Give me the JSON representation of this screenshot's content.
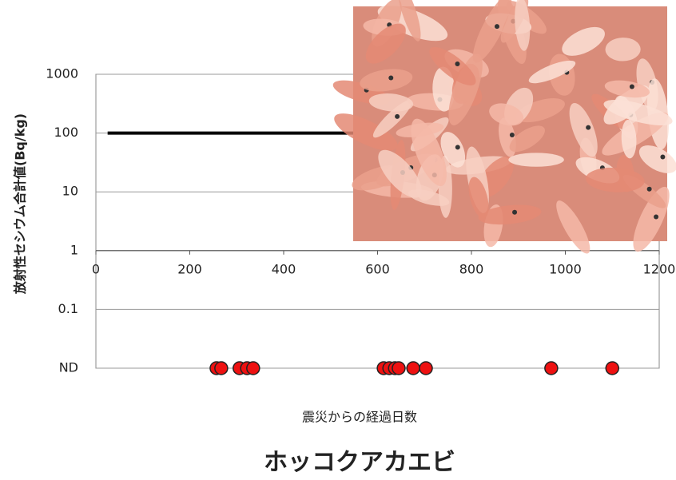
{
  "chart_data": {
    "type": "scatter",
    "title": "ホッコクアカエビ",
    "x_label": "震災からの経過日数",
    "y_label": "放射性セシウム合計値(Bq/kg)",
    "log_scale_y": true,
    "grid": true,
    "xaxis_at": 1,
    "xlim": [
      0,
      1200
    ],
    "xticks": [
      0,
      200,
      400,
      600,
      800,
      1000,
      1200
    ],
    "ylim": [
      0.01,
      1000
    ],
    "yticks": [
      {
        "value": 0.01,
        "label": "ND"
      },
      0.1,
      1,
      10,
      100,
      1000
    ],
    "reference_line": {
      "x": [
        25,
        1200
      ],
      "values": [
        100,
        100
      ],
      "color": "#000000"
    },
    "series": [
      {
        "color": "#ee1111",
        "x": [
          257,
          267,
          306,
          322,
          335,
          613,
          625,
          637,
          645,
          676,
          703,
          970,
          1100
        ],
        "values": [
          0.01,
          0.01,
          0.01,
          0.01,
          0.01,
          0.01,
          0.01,
          0.01,
          0.01,
          0.01,
          0.01,
          0.01,
          0.01
        ]
      }
    ]
  }
}
